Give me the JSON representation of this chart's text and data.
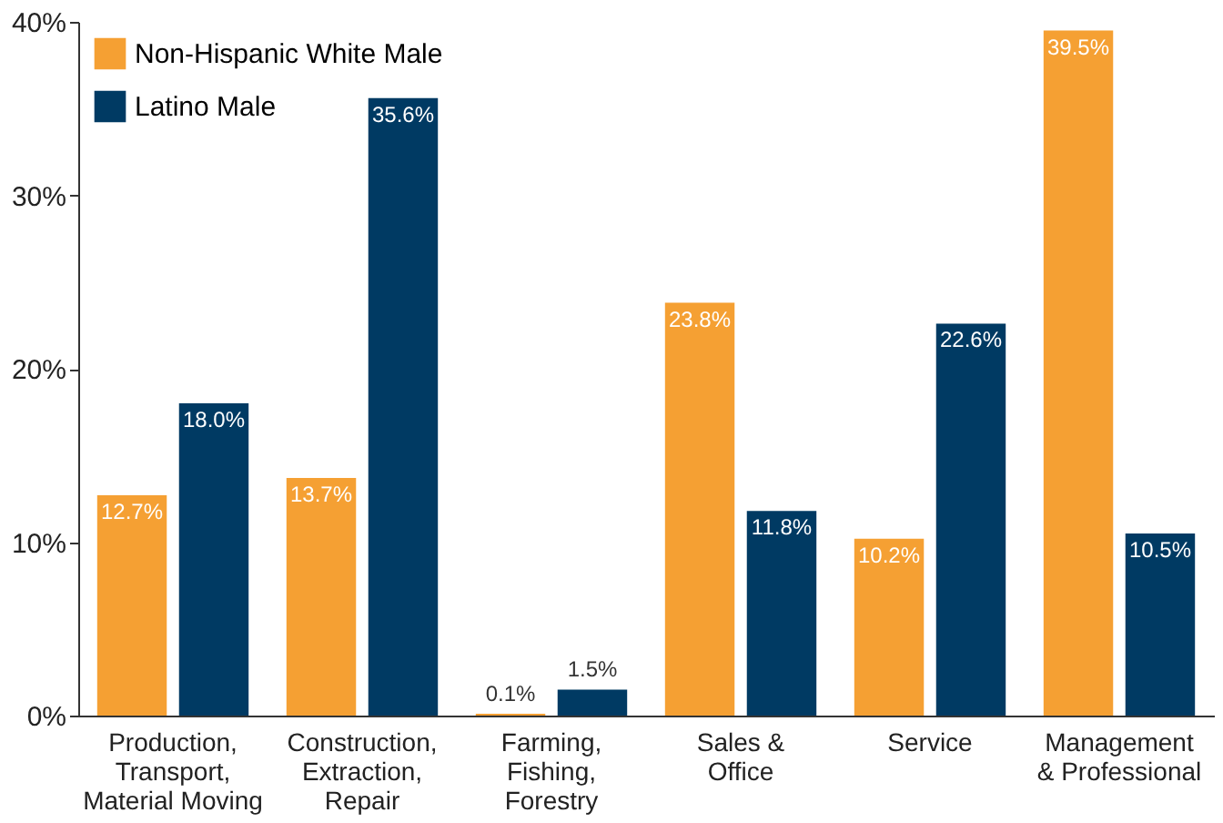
{
  "chart_data": {
    "type": "bar",
    "categories": [
      "Production,\nTransport,\nMaterial Moving",
      "Construction,\nExtraction,\nRepair",
      "Farming,\nFishing,\nForestry",
      "Sales &\nOffice",
      "Service",
      "Management\n& Professional"
    ],
    "series": [
      {
        "name": "Non-Hispanic White Male",
        "color": "#f5a033",
        "values": [
          12.7,
          13.7,
          0.1,
          23.8,
          10.2,
          39.5
        ],
        "value_labels": [
          "12.7%",
          "13.7%",
          "0.1%",
          "23.8%",
          "10.2%",
          "39.5%"
        ]
      },
      {
        "name": "Latino Male",
        "color": "#003a63",
        "values": [
          18.0,
          35.6,
          1.5,
          11.8,
          22.6,
          10.5
        ],
        "value_labels": [
          "18.0%",
          "35.6%",
          "1.5%",
          "11.8%",
          "22.6%",
          "10.5%"
        ]
      }
    ],
    "ylim": [
      0,
      40
    ],
    "yticks": [
      {
        "value": 0,
        "label": "0%"
      },
      {
        "value": 10,
        "label": "10%"
      },
      {
        "value": 20,
        "label": "20%"
      },
      {
        "value": 30,
        "label": "30%"
      },
      {
        "value": 40,
        "label": "40%"
      }
    ],
    "grid": false,
    "legend": "top left"
  }
}
